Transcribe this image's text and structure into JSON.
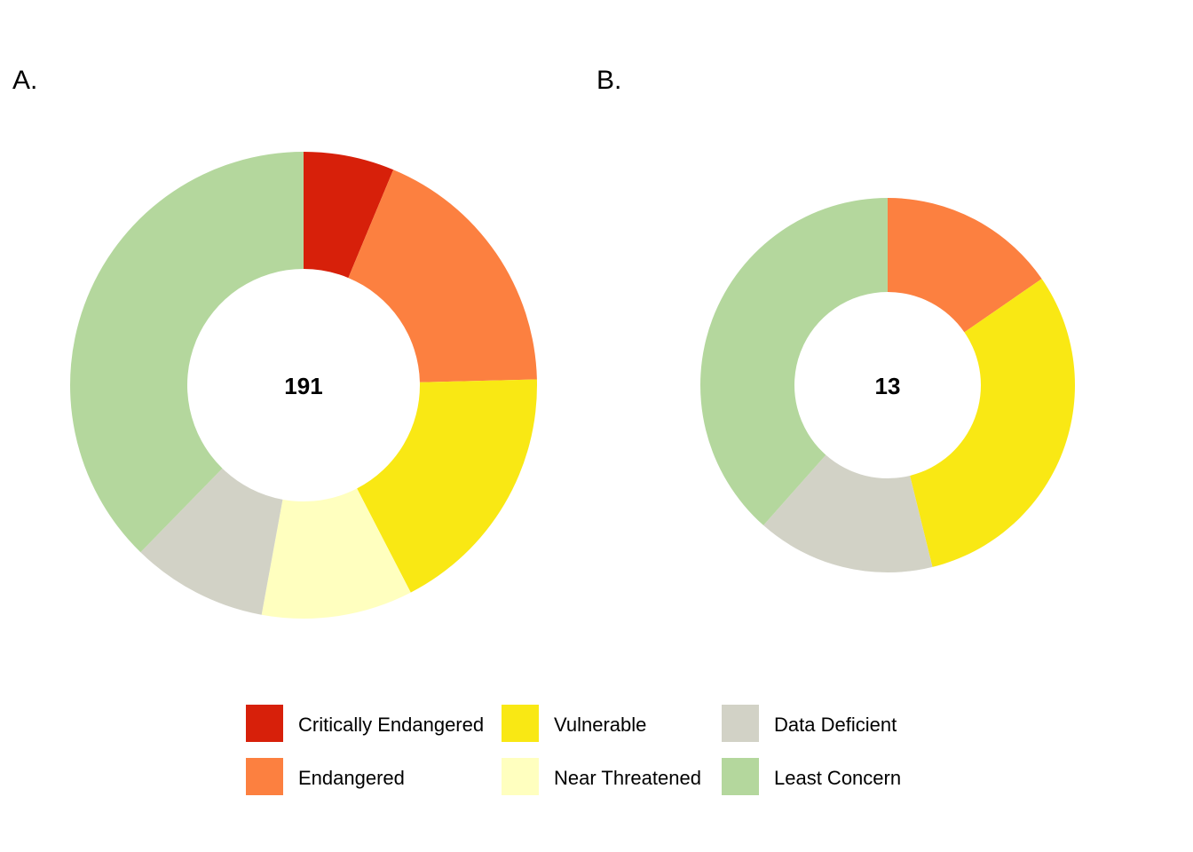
{
  "chart_data": [
    {
      "type": "pie",
      "subtype": "donut",
      "panel_label": "A.",
      "center_label": "191",
      "total": 191,
      "categories": [
        "Critically Endangered",
        "Endangered",
        "Vulnerable",
        "Near Threatened",
        "Data Deficient",
        "Least Concern"
      ],
      "values": [
        12,
        35,
        34,
        20,
        18,
        72
      ]
    },
    {
      "type": "pie",
      "subtype": "donut",
      "panel_label": "B.",
      "center_label": "13",
      "total": 13,
      "categories": [
        "Critically Endangered",
        "Endangered",
        "Vulnerable",
        "Near Threatened",
        "Data Deficient",
        "Least Concern"
      ],
      "values": [
        0,
        2,
        4,
        0,
        2,
        5
      ]
    }
  ],
  "legend": {
    "placement": "bottom",
    "items": [
      {
        "label": "Critically Endangered",
        "color": "#d7200a"
      },
      {
        "label": "Endangered",
        "color": "#fc8040"
      },
      {
        "label": "Vulnerable",
        "color": "#f9e814"
      },
      {
        "label": "Near Threatened",
        "color": "#ffffbf"
      },
      {
        "label": "Data Deficient",
        "color": "#d2d2c6"
      },
      {
        "label": "Least Concern",
        "color": "#b4d79d"
      }
    ]
  }
}
